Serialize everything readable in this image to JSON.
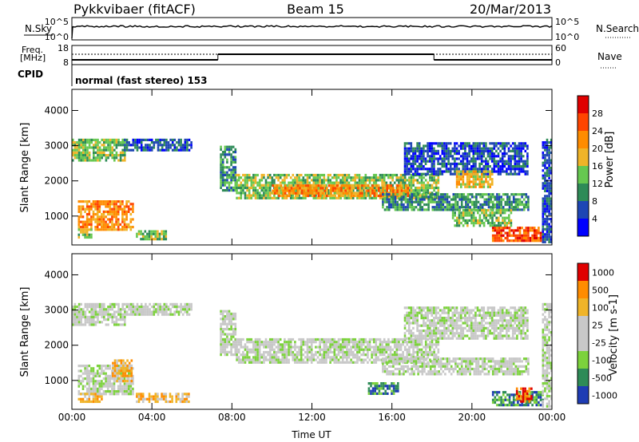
{
  "header": {
    "station": "Pykkvibaer (fitACF)",
    "beam": "Beam 15",
    "date": "20/Mar/2013"
  },
  "strips": {
    "nsky_label": "N.Sky",
    "nsky_ticks": [
      "10^5",
      "10^0"
    ],
    "nsearch_label": "N.Search",
    "nsearch_ticks": [
      "10^5",
      "10^0"
    ],
    "freq_label": "Freq.",
    "freq_unit": "[MHz]",
    "freq_ticks": [
      "18",
      "8"
    ],
    "nave_label": "Nave",
    "nave_ticks": [
      "60",
      "0"
    ],
    "cpid_label": "CPID",
    "cpid_text": "normal (fast stereo) 153",
    "freq_segments": [
      {
        "x0": 0.0,
        "x1": 7.3,
        "level": "low"
      },
      {
        "x0": 7.3,
        "x1": 18.1,
        "level": "high"
      },
      {
        "x0": 18.1,
        "x1": 24.0,
        "level": "low"
      }
    ]
  },
  "chart_data": [
    {
      "type": "heatmap",
      "name": "power",
      "ylabel": "Slant Range [km]",
      "xlim": [
        0,
        24
      ],
      "ylim": [
        180,
        4600
      ],
      "yticks": [
        "1000",
        "2000",
        "3000",
        "4000"
      ],
      "colorbar_label": "Power [dB]",
      "colorbar_ticks": [
        "4",
        "8",
        "12",
        "16",
        "20",
        "24",
        "28"
      ],
      "colors": [
        "#0000ff",
        "#1e46b4",
        "#2e8b57",
        "#66c850",
        "#f0b428",
        "#ff8c00",
        "#ff4500",
        "#e00000"
      ],
      "regions": [
        {
          "x0": 0.0,
          "x1": 2.6,
          "y0": 2550,
          "y1": 3200,
          "level": 3
        },
        {
          "x0": 2.6,
          "x1": 6.0,
          "y0": 2900,
          "y1": 3200,
          "level": 1
        },
        {
          "x0": 0.3,
          "x1": 3.0,
          "y0": 650,
          "y1": 1450,
          "level": 5
        },
        {
          "x0": 0.3,
          "x1": 1.0,
          "y0": 380,
          "y1": 650,
          "level": 3
        },
        {
          "x0": 3.2,
          "x1": 4.7,
          "y0": 380,
          "y1": 600,
          "level": 3
        },
        {
          "x0": 7.4,
          "x1": 8.2,
          "y0": 1700,
          "y1": 3000,
          "level": 2
        },
        {
          "x0": 8.2,
          "x1": 18.3,
          "y0": 1500,
          "y1": 2200,
          "level": 3
        },
        {
          "x0": 10.0,
          "x1": 16.8,
          "y0": 1600,
          "y1": 1900,
          "level": 5
        },
        {
          "x0": 15.5,
          "x1": 22.8,
          "y0": 1150,
          "y1": 1650,
          "level": 2
        },
        {
          "x0": 16.6,
          "x1": 22.8,
          "y0": 2200,
          "y1": 3100,
          "level": 1
        },
        {
          "x0": 19.2,
          "x1": 21.0,
          "y0": 1800,
          "y1": 2300,
          "level": 4
        },
        {
          "x0": 19.0,
          "x1": 22.0,
          "y0": 700,
          "y1": 1200,
          "level": 3
        },
        {
          "x0": 21.0,
          "x1": 23.5,
          "y0": 280,
          "y1": 700,
          "level": 6
        },
        {
          "x0": 23.5,
          "x1": 24.0,
          "y0": 250,
          "y1": 3200,
          "level": 1
        }
      ]
    },
    {
      "type": "heatmap",
      "name": "velocity",
      "ylabel": "Slant Range [km]",
      "xlabel": "Time UT",
      "xlim": [
        0,
        24
      ],
      "ylim": [
        180,
        4600
      ],
      "yticks": [
        "1000",
        "2000",
        "3000",
        "4000"
      ],
      "xticks": [
        "00:00",
        "04:00",
        "08:00",
        "12:00",
        "16:00",
        "20:00",
        "00:00"
      ],
      "colorbar_label": "Velocity [m s-1]",
      "colorbar_ticks": [
        "1000",
        "500",
        "100",
        "25",
        "-25",
        "-100",
        "-500",
        "-1000"
      ],
      "colors": [
        "#1e3cb4",
        "#2e8b57",
        "#7cd23c",
        "#c8c8c8",
        "#c8c8c8",
        "#f0b428",
        "#ff8c00",
        "#e00000"
      ],
      "regions": [
        {
          "x0": 0.0,
          "x1": 2.6,
          "y0": 2550,
          "y1": 3200,
          "level": 3
        },
        {
          "x0": 2.6,
          "x1": 6.0,
          "y0": 2900,
          "y1": 3200,
          "level": 3
        },
        {
          "x0": 0.3,
          "x1": 3.0,
          "y0": 650,
          "y1": 1450,
          "level": 3
        },
        {
          "x0": 2.0,
          "x1": 3.0,
          "y0": 1000,
          "y1": 1600,
          "level": 5
        },
        {
          "x0": 0.3,
          "x1": 1.5,
          "y0": 380,
          "y1": 650,
          "level": 5
        },
        {
          "x0": 3.2,
          "x1": 5.8,
          "y0": 380,
          "y1": 650,
          "level": 5
        },
        {
          "x0": 7.4,
          "x1": 8.2,
          "y0": 1700,
          "y1": 3000,
          "level": 3
        },
        {
          "x0": 8.2,
          "x1": 18.3,
          "y0": 1500,
          "y1": 2200,
          "level": 3
        },
        {
          "x0": 15.5,
          "x1": 22.8,
          "y0": 1150,
          "y1": 1650,
          "level": 3
        },
        {
          "x0": 16.6,
          "x1": 22.8,
          "y0": 2200,
          "y1": 3100,
          "level": 3
        },
        {
          "x0": 14.8,
          "x1": 16.3,
          "y0": 600,
          "y1": 950,
          "level": 1
        },
        {
          "x0": 21.0,
          "x1": 23.5,
          "y0": 280,
          "y1": 700,
          "level": 1
        },
        {
          "x0": 22.2,
          "x1": 23.0,
          "y0": 400,
          "y1": 800,
          "level": 6
        },
        {
          "x0": 23.5,
          "x1": 24.0,
          "y0": 250,
          "y1": 3200,
          "level": 3
        }
      ]
    }
  ]
}
